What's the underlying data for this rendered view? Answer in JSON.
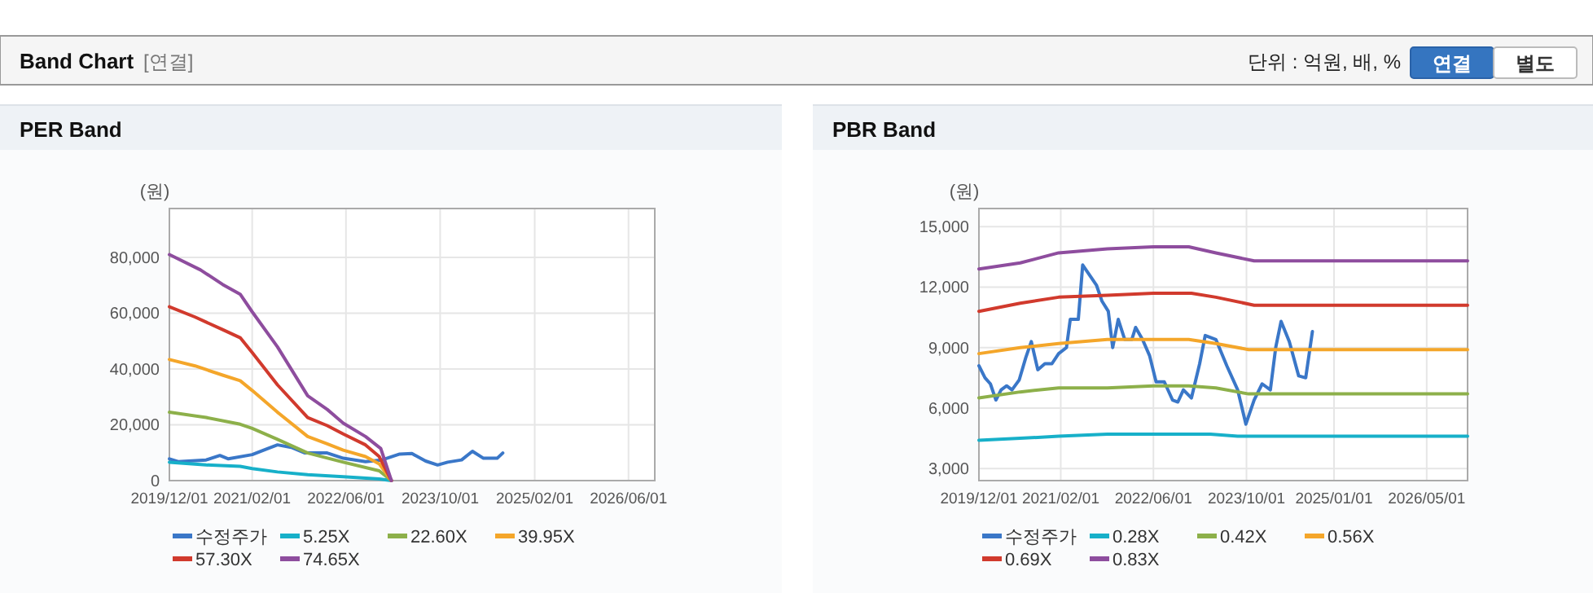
{
  "chart_data": [
    {
      "type": "other",
      "title": "Band Chart",
      "annotations": [
        "[연결]",
        "단위 : 억원, 배, %",
        "연결",
        "별도"
      ]
    },
    {
      "type": "line",
      "title": "PER Band",
      "ylabel": "(원)",
      "legend": "bottom",
      "grid": true,
      "xlim": [
        "2019-12-01",
        "2026-10-15"
      ],
      "xticks": [
        {
          "value": "2019-12-01",
          "label": "2019/12/01"
        },
        {
          "value": "2021-02-01",
          "label": "2021/02/01"
        },
        {
          "value": "2022-06-01",
          "label": "2022/06/01"
        },
        {
          "value": "2023-10-01",
          "label": "2023/10/01"
        },
        {
          "value": "2025-02-01",
          "label": "2025/02/01"
        },
        {
          "value": "2026-06-01",
          "label": "2026/06/01"
        }
      ],
      "ylim": [
        0,
        97500
      ],
      "yticks": [
        0,
        {
          "value": 20000,
          "label": "20,000"
        },
        {
          "value": 40000,
          "label": "40,000"
        },
        {
          "value": 60000,
          "label": "60,000"
        },
        {
          "value": 80000,
          "label": "80,000"
        }
      ],
      "series": [
        {
          "name": "수정주가",
          "color": "#3a77c8",
          "x": [
            "2019-12-01",
            "2020-01-15",
            "2020-06-08",
            "2020-08-18",
            "2020-10-01",
            "2021-02-01",
            "2021-04-15",
            "2021-06-12",
            "2021-08-22",
            "2021-11-01",
            "2022-02-24",
            "2022-05-18",
            "2022-09-10",
            "2022-12-04",
            "2023-03-06",
            "2023-05-08",
            "2023-07-18",
            "2023-09-18",
            "2023-11-09",
            "2024-01-20",
            "2024-03-16",
            "2024-05-12",
            "2024-07-22",
            "2024-08-20"
          ],
          "values": [
            7800,
            6800,
            7400,
            9000,
            7800,
            9300,
            11300,
            12800,
            11900,
            9900,
            9900,
            8000,
            6800,
            7400,
            9500,
            9700,
            7000,
            5600,
            6600,
            7400,
            10500,
            8000,
            8000,
            9900
          ]
        },
        {
          "name": "5.25X",
          "color": "#17b0c9",
          "x": [
            "2019-12-01",
            "2020-06-08",
            "2020-12-01",
            "2021-02-01",
            "2021-06-12",
            "2021-11-15",
            "2022-05-18",
            "2022-11-20",
            "2023-01-22"
          ],
          "values": [
            6600,
            5600,
            5100,
            4300,
            3100,
            2100,
            1400,
            600,
            0
          ]
        },
        {
          "name": "22.60X",
          "color": "#8db04a",
          "x": [
            "2019-12-01",
            "2020-06-08",
            "2020-12-01",
            "2021-02-01",
            "2021-06-12",
            "2021-11-15",
            "2022-05-18",
            "2022-11-20",
            "2023-01-22"
          ],
          "values": [
            24500,
            22600,
            20200,
            18700,
            14800,
            9900,
            6600,
            3500,
            0
          ]
        },
        {
          "name": "39.95X",
          "color": "#f4a62a",
          "x": [
            "2019-12-01",
            "2020-04-12",
            "2020-09-01",
            "2020-12-01",
            "2021-02-01",
            "2021-06-12",
            "2021-11-15",
            "2022-02-24",
            "2022-05-18",
            "2022-09-10",
            "2022-11-20",
            "2023-01-22"
          ],
          "values": [
            43400,
            41100,
            37800,
            35800,
            32300,
            24500,
            15800,
            13200,
            10900,
            8600,
            6000,
            0
          ]
        },
        {
          "name": "57.30X",
          "color": "#d13a2d",
          "x": [
            "2019-12-01",
            "2020-04-12",
            "2020-09-01",
            "2020-12-01",
            "2021-02-01",
            "2021-06-12",
            "2021-11-15",
            "2022-02-24",
            "2022-05-18",
            "2022-09-10",
            "2022-11-20",
            "2023-01-22"
          ],
          "values": [
            62300,
            58600,
            54100,
            51200,
            45900,
            34300,
            22600,
            19700,
            16700,
            12800,
            8600,
            0
          ]
        },
        {
          "name": "74.65X",
          "color": "#8e4d9e",
          "x": [
            "2019-12-01",
            "2020-05-10",
            "2020-09-01",
            "2020-12-01",
            "2021-02-01",
            "2021-06-12",
            "2021-11-15",
            "2022-02-24",
            "2022-05-18",
            "2022-09-10",
            "2022-11-28",
            "2023-01-22"
          ],
          "values": [
            81000,
            75500,
            70300,
            66800,
            60500,
            47900,
            30400,
            25500,
            20600,
            15800,
            11500,
            0
          ]
        }
      ]
    },
    {
      "type": "line",
      "title": "PBR Band",
      "ylabel": "(원)",
      "legend": "bottom",
      "grid": true,
      "xlim": [
        "2019-12-01",
        "2026-12-01"
      ],
      "xticks": [
        {
          "value": "2019-12-01",
          "label": "2019/12/01"
        },
        {
          "value": "2021-02-01",
          "label": "2021/02/01"
        },
        {
          "value": "2022-06-01",
          "label": "2022/06/01"
        },
        {
          "value": "2023-10-01",
          "label": "2023/10/01"
        },
        {
          "value": "2025-01-01",
          "label": "2025/01/01"
        },
        {
          "value": "2026-05-01",
          "label": "2026/05/01"
        }
      ],
      "ylim": [
        2400,
        15900
      ],
      "yticks": [
        {
          "value": 3000,
          "label": "3,000"
        },
        {
          "value": 6000,
          "label": "6,000"
        },
        {
          "value": 9000,
          "label": "9,000"
        },
        {
          "value": 12000,
          "label": "12,000"
        },
        {
          "value": 15000,
          "label": "15,000"
        }
      ],
      "series": [
        {
          "name": "수정주가",
          "color": "#3a77c8",
          "x": [
            "2019-12-01",
            "2020-01-02",
            "2020-01-30",
            "2020-02-28",
            "2020-03-26",
            "2020-04-24",
            "2020-05-22",
            "2020-06-29",
            "2020-08-02",
            "2020-08-31",
            "2020-10-04",
            "2020-11-10",
            "2020-12-17",
            "2021-01-21",
            "2021-03-03",
            "2021-03-23",
            "2021-05-04",
            "2021-05-27",
            "2021-07-09",
            "2021-08-07",
            "2021-09-05",
            "2021-10-08",
            "2021-10-31",
            "2021-11-29",
            "2022-01-02",
            "2022-02-08",
            "2022-02-28",
            "2022-04-05",
            "2022-05-12",
            "2022-06-15",
            "2022-07-28",
            "2022-09-09",
            "2022-10-07",
            "2022-11-05",
            "2022-12-17",
            "2023-01-29",
            "2023-02-27",
            "2023-04-24",
            "2023-06-20",
            "2023-08-16",
            "2023-09-28",
            "2023-11-10",
            "2023-12-22",
            "2024-02-03",
            "2024-03-02",
            "2024-03-30",
            "2024-05-12",
            "2024-06-30",
            "2024-08-06",
            "2024-09-10"
          ],
          "values": [
            8100,
            7500,
            7200,
            6400,
            6900,
            7100,
            6900,
            7400,
            8500,
            9300,
            7900,
            8200,
            8200,
            8700,
            9000,
            10400,
            10400,
            13100,
            12500,
            12100,
            11300,
            10800,
            9000,
            10400,
            9400,
            9400,
            10000,
            9400,
            8600,
            7300,
            7300,
            6400,
            6300,
            6900,
            6500,
            8200,
            9600,
            9400,
            8100,
            6900,
            5200,
            6400,
            7200,
            6900,
            9000,
            10300,
            9300,
            7600,
            7500,
            9800
          ]
        },
        {
          "name": "0.28X",
          "color": "#17b0c9",
          "x": [
            "2019-12-01",
            "2020-07-04",
            "2021-01-21",
            "2021-10-03",
            "2022-06-01",
            "2023-03-26",
            "2023-08-16",
            "2026-12-01"
          ],
          "values": [
            4400,
            4500,
            4600,
            4700,
            4700,
            4700,
            4600,
            4600
          ]
        },
        {
          "name": "0.42X",
          "color": "#8db04a",
          "x": [
            "2019-12-01",
            "2020-07-04",
            "2021-01-21",
            "2021-10-03",
            "2022-06-01",
            "2022-12-03",
            "2023-04-24",
            "2023-10-12",
            "2026-12-01"
          ],
          "values": [
            6500,
            6800,
            7000,
            7000,
            7100,
            7100,
            7000,
            6700,
            6700
          ]
        },
        {
          "name": "0.56X",
          "color": "#f4a62a",
          "x": [
            "2019-12-01",
            "2020-07-04",
            "2021-01-21",
            "2021-10-03",
            "2022-06-01",
            "2022-12-03",
            "2023-04-24",
            "2023-10-12",
            "2026-12-01"
          ],
          "values": [
            8700,
            9000,
            9200,
            9400,
            9400,
            9400,
            9200,
            8900,
            8900
          ]
        },
        {
          "name": "0.69X",
          "color": "#d13a2d",
          "x": [
            "2019-12-01",
            "2020-07-04",
            "2021-01-21",
            "2021-10-03",
            "2022-06-01",
            "2022-12-17",
            "2023-04-24",
            "2023-11-10",
            "2026-12-01"
          ],
          "values": [
            10800,
            11200,
            11500,
            11600,
            11700,
            11700,
            11500,
            11100,
            11100
          ]
        },
        {
          "name": "0.83X",
          "color": "#8e4d9e",
          "x": [
            "2019-12-01",
            "2020-07-04",
            "2021-01-21",
            "2021-10-03",
            "2022-06-01",
            "2022-12-03",
            "2023-04-24",
            "2023-11-10",
            "2026-12-01"
          ],
          "values": [
            12900,
            13200,
            13700,
            13900,
            14000,
            14000,
            13700,
            13300,
            13300
          ]
        }
      ]
    }
  ]
}
